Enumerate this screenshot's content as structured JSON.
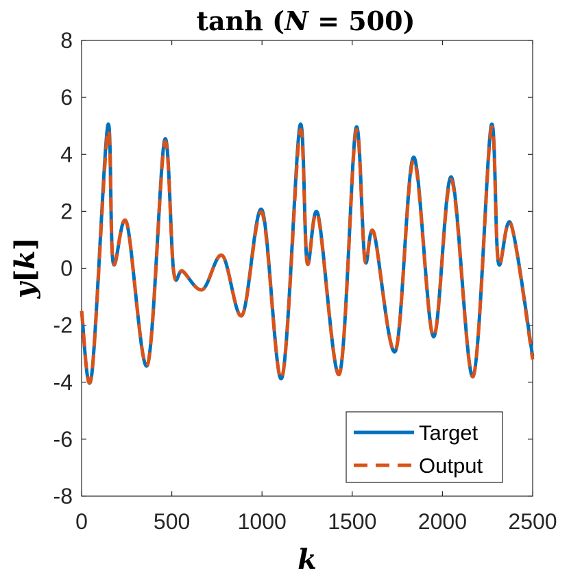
{
  "chart_data": {
    "type": "line",
    "title": "tanh (N = 500)",
    "title_parts": {
      "fn": "tanh ",
      "open": "(",
      "var": "N",
      "rest": " = 500)"
    },
    "xlabel": "k",
    "ylabel": "y[k]",
    "ylabel_parts": {
      "var": "y",
      "open": "[",
      "idx": "k",
      "close": "]"
    },
    "xlim": [
      0,
      2500
    ],
    "ylim": [
      -8,
      8
    ],
    "xticks": [
      0,
      500,
      1000,
      1500,
      2000,
      2500
    ],
    "xtick_labels": [
      "0",
      "500",
      "1000",
      "1500",
      "2000",
      "2500"
    ],
    "yticks": [
      -8,
      -6,
      -4,
      -2,
      0,
      2,
      4,
      6,
      8
    ],
    "ytick_labels": [
      "-8",
      "-6",
      "-4",
      "-2",
      "0",
      "2",
      "4",
      "6",
      "8"
    ],
    "grid": false,
    "legend_position": "bottom-right",
    "series": [
      {
        "name": "Target",
        "color": "#0072BD",
        "style": "solid",
        "x": [
          0,
          55,
          145,
          175,
          250,
          365,
          460,
          510,
          560,
          670,
          780,
          890,
          1000,
          1110,
          1210,
          1250,
          1310,
          1430,
          1520,
          1570,
          1620,
          1740,
          1840,
          1950,
          2050,
          2170,
          2270,
          2310,
          2380,
          2500
        ],
        "values": [
          -1.5,
          -3.8,
          5.0,
          0.2,
          1.6,
          -3.4,
          4.5,
          -0.1,
          -0.1,
          -0.75,
          0.45,
          -1.65,
          2.05,
          -3.85,
          5.0,
          0.2,
          1.9,
          -3.7,
          4.9,
          0.3,
          1.25,
          -2.9,
          3.9,
          -2.4,
          3.2,
          -3.8,
          5.0,
          0.2,
          1.55,
          -3.1
        ]
      },
      {
        "name": "Output",
        "color": "#D95319",
        "style": "dashed",
        "x": [
          0,
          55,
          145,
          175,
          250,
          365,
          460,
          510,
          560,
          670,
          780,
          890,
          1000,
          1110,
          1210,
          1250,
          1310,
          1430,
          1520,
          1570,
          1620,
          1740,
          1840,
          1950,
          2050,
          2170,
          2270,
          2310,
          2380,
          2500
        ],
        "values": [
          -1.5,
          -3.8,
          4.8,
          0.2,
          1.6,
          -3.4,
          4.4,
          -0.1,
          -0.1,
          -0.75,
          0.45,
          -1.65,
          1.95,
          -3.85,
          4.8,
          0.2,
          1.85,
          -3.7,
          4.8,
          0.3,
          1.25,
          -2.9,
          3.8,
          -2.4,
          3.1,
          -3.8,
          4.9,
          0.2,
          1.55,
          -3.2
        ]
      }
    ]
  }
}
